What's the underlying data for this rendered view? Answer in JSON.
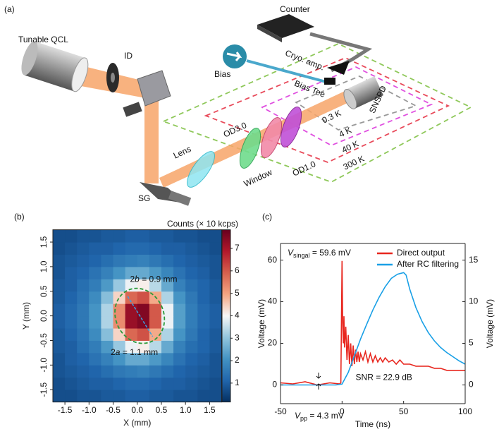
{
  "panel_labels": [
    "(a)",
    "(b)",
    "(c)"
  ],
  "diagram": {
    "labels": [
      "Tunable QCL",
      "ID",
      "SG",
      "Lens",
      "Window",
      "OD3.0",
      "OD1.0",
      "SNSPD",
      "Bias",
      "Bias Tee",
      "Cryo. amp.",
      "Counter",
      "0.3 K",
      "4 K",
      "40 K",
      "300 K"
    ]
  },
  "chart_data": [
    {
      "type": "heatmap",
      "xlabel": "X (mm)",
      "ylabel": "Y (mm)",
      "colorbar_label": "Counts (× 10 kcps)",
      "x": [
        -1.625,
        -1.375,
        -1.125,
        -0.875,
        -0.625,
        -0.375,
        -0.125,
        0.125,
        0.375,
        0.625,
        0.875,
        1.125,
        1.375,
        1.625
      ],
      "y": [
        -1.625,
        -1.375,
        -1.125,
        -0.875,
        -0.625,
        -0.375,
        -0.125,
        0.125,
        0.375,
        0.625,
        0.875,
        1.125,
        1.375,
        1.625
      ],
      "z": [
        [
          0.7,
          0.7,
          0.8,
          0.8,
          0.9,
          0.9,
          1.0,
          1.0,
          0.9,
          0.9,
          0.8,
          0.8,
          0.7,
          0.7
        ],
        [
          0.7,
          0.8,
          0.9,
          1.0,
          1.0,
          1.1,
          1.2,
          1.2,
          1.1,
          1.0,
          1.0,
          0.9,
          0.8,
          0.7
        ],
        [
          0.8,
          0.9,
          1.0,
          1.1,
          1.3,
          1.5,
          1.6,
          1.7,
          1.5,
          1.3,
          1.1,
          1.0,
          0.9,
          0.8
        ],
        [
          0.8,
          1.0,
          1.1,
          1.4,
          1.7,
          2.1,
          2.5,
          2.5,
          2.2,
          1.8,
          1.4,
          1.1,
          1.0,
          0.8
        ],
        [
          0.9,
          1.0,
          1.3,
          1.6,
          2.2,
          3.1,
          3.9,
          4.1,
          3.4,
          2.5,
          1.7,
          1.3,
          1.1,
          0.9
        ],
        [
          0.9,
          1.1,
          1.4,
          1.9,
          2.9,
          4.4,
          5.8,
          6.1,
          4.9,
          3.3,
          2.1,
          1.5,
          1.1,
          0.9
        ],
        [
          1.0,
          1.2,
          1.5,
          2.1,
          3.3,
          5.3,
          7.2,
          7.5,
          6.0,
          3.9,
          2.3,
          1.6,
          1.2,
          1.0
        ],
        [
          1.0,
          1.2,
          1.5,
          2.1,
          3.3,
          5.3,
          7.2,
          7.5,
          6.0,
          3.9,
          2.3,
          1.6,
          1.2,
          1.0
        ],
        [
          0.9,
          1.1,
          1.4,
          1.9,
          2.9,
          4.4,
          5.8,
          6.1,
          4.9,
          3.3,
          2.1,
          1.5,
          1.1,
          0.9
        ],
        [
          0.9,
          1.0,
          1.3,
          1.6,
          2.2,
          3.1,
          3.9,
          4.1,
          3.4,
          2.5,
          1.7,
          1.3,
          1.1,
          0.9
        ],
        [
          0.8,
          1.0,
          1.1,
          1.4,
          1.7,
          2.1,
          2.5,
          2.5,
          2.2,
          1.8,
          1.4,
          1.1,
          1.0,
          0.8
        ],
        [
          0.8,
          0.9,
          1.0,
          1.1,
          1.3,
          1.5,
          1.6,
          1.7,
          1.5,
          1.3,
          1.1,
          1.0,
          0.9,
          0.8
        ],
        [
          0.7,
          0.8,
          0.9,
          1.0,
          1.0,
          1.1,
          1.2,
          1.2,
          1.1,
          1.0,
          1.0,
          0.9,
          0.8,
          0.7
        ],
        [
          0.7,
          0.7,
          0.8,
          0.8,
          0.9,
          0.9,
          1.0,
          1.0,
          0.9,
          0.9,
          0.8,
          0.8,
          0.7,
          0.7
        ]
      ],
      "xlim": [
        -1.75,
        1.75
      ],
      "ylim": [
        -1.75,
        1.75
      ],
      "zlim": [
        0.16,
        7.83
      ],
      "xticks": [
        -1.5,
        {
          "value": -1,
          "label": "-1.0"
        },
        -0.5,
        {
          "value": 0,
          "label": "0.0"
        },
        0.5,
        {
          "value": 1,
          "label": "1.0"
        },
        1.5
      ],
      "yticks": [
        -1.5,
        {
          "value": -1,
          "label": "-1.0"
        },
        -0.5,
        {
          "value": 0,
          "label": "0.0"
        },
        0.5,
        {
          "value": 1,
          "label": "1.0"
        },
        1.5
      ],
      "colorbar_ticks": [
        1,
        2,
        3,
        4,
        5,
        6,
        7
      ],
      "colormap": [
        "#053061",
        "#2166ac",
        "#4393c3",
        "#92c5de",
        "#f7f7f7",
        "#f4a582",
        "#d6604d",
        "#b2182b",
        "#67001f"
      ],
      "annotations": [
        {
          "pre": "2",
          "var": "b",
          "post": " = 0.9 mm"
        },
        {
          "pre": "2",
          "var": "a",
          "post": " = 1.1 mm"
        }
      ]
    },
    {
      "type": "line",
      "xlabel": "Time (ns)",
      "ylabel": "Voltage (mV)",
      "y2label": "Voltage (mV)",
      "xlim": [
        -50,
        100
      ],
      "xticks": [
        -50,
        0,
        50,
        100
      ],
      "ylim": [
        -9,
        68
      ],
      "yticks": [
        0,
        20,
        40,
        60
      ],
      "y2lim": [
        -2.25,
        17
      ],
      "y2ticks": [
        0,
        5,
        10,
        15
      ],
      "legend": "upper right",
      "series": [
        {
          "name": "Direct output",
          "color": "#e8271f",
          "x": [
            -50,
            -40,
            -30,
            -20,
            -10,
            -2,
            -1,
            0,
            0.5,
            1,
            1.5,
            2,
            3,
            4,
            5,
            6,
            7,
            8,
            9,
            10,
            11,
            12,
            13,
            14,
            15,
            17,
            19,
            21,
            23,
            25,
            27,
            29,
            31,
            33,
            35,
            38,
            41,
            44,
            47,
            50,
            55,
            60,
            65,
            70,
            75,
            80,
            85,
            90,
            95,
            100
          ],
          "values": [
            1,
            0.5,
            1.5,
            0,
            1,
            0.5,
            1,
            59.6,
            30,
            20,
            33,
            18,
            28,
            12,
            24,
            10,
            20,
            9,
            19,
            10,
            17,
            11,
            16,
            11,
            15,
            12,
            16,
            11,
            15,
            11,
            14,
            11,
            13,
            11,
            13,
            11,
            12,
            10,
            12,
            10,
            10,
            9,
            9,
            9,
            8,
            8,
            7,
            7,
            7,
            7
          ]
        },
        {
          "name": "After RC filtering",
          "color": "#1aa0e6",
          "axis": "y2",
          "x": [
            -50,
            -25,
            -5,
            0,
            5,
            10,
            15,
            20,
            25,
            30,
            35,
            40,
            45,
            50,
            52,
            55,
            60,
            65,
            70,
            75,
            80,
            85,
            90,
            95,
            100
          ],
          "values": [
            0,
            0,
            0,
            0.1,
            1.5,
            3.5,
            5.5,
            7.3,
            9,
            10.5,
            11.8,
            12.8,
            13.3,
            13.5,
            13.2,
            11.5,
            9.3,
            7.6,
            6.3,
            5.3,
            4.5,
            3.9,
            3.4,
            2.9,
            2.5
          ]
        }
      ],
      "annotations": [
        {
          "var": "V",
          "sub": "singal",
          "post": " = 59.6 mV"
        },
        {
          "text": "SNR = 22.9 dB"
        },
        {
          "var": "V",
          "sub": "pp",
          "post": " = 4.3 mV"
        }
      ]
    }
  ]
}
